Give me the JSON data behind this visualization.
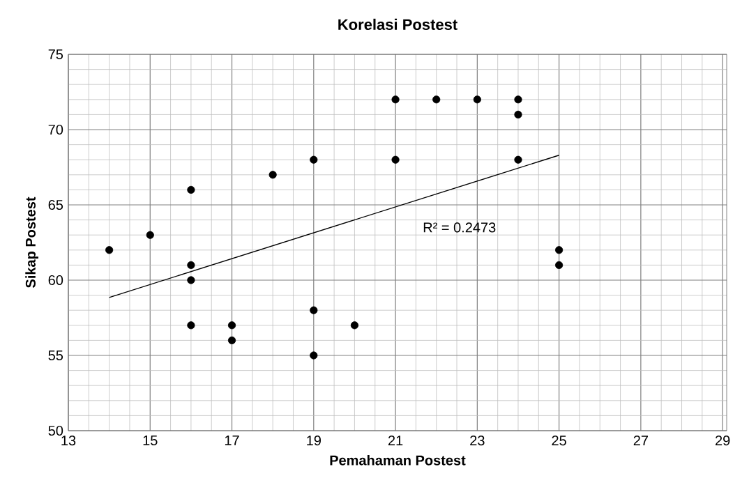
{
  "chart_data": {
    "type": "scatter",
    "title": "Korelasi Postest",
    "xlabel": "Pemahaman Postest",
    "ylabel": "Sikap Postest",
    "series": [
      {
        "color": "#000000",
        "marker": "circle",
        "x": [
          14,
          15,
          16,
          16,
          16,
          16,
          17,
          17,
          18,
          19,
          19,
          19,
          20,
          21,
          21,
          22,
          23,
          24,
          24,
          24,
          25,
          25
        ],
        "values": [
          62,
          63,
          66,
          61,
          60,
          57,
          57,
          56,
          67,
          68,
          58,
          55,
          57,
          72,
          68,
          72,
          72,
          72,
          71,
          68,
          62,
          61
        ]
      },
      {
        "type": "line",
        "color": "#000000",
        "marker": "none",
        "x": [
          14,
          25
        ],
        "values": [
          58.85,
          68.3
        ]
      }
    ],
    "annotations": [
      "R² = 0.2473"
    ],
    "xlim": [
      13,
      29.1
    ],
    "ylim": [
      50,
      75
    ],
    "xticks": [
      13,
      15,
      17,
      19,
      21,
      23,
      25,
      27,
      29
    ],
    "yticks": [
      50,
      55,
      60,
      65,
      70,
      75
    ],
    "grid": true
  }
}
